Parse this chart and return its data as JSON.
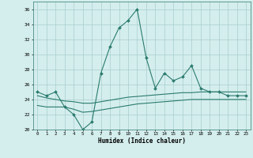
{
  "x": [
    0,
    1,
    2,
    3,
    4,
    5,
    6,
    7,
    8,
    9,
    10,
    11,
    12,
    13,
    14,
    15,
    16,
    17,
    18,
    19,
    20,
    21,
    22,
    23
  ],
  "y_main": [
    25,
    24.5,
    25,
    23,
    22,
    20,
    21,
    27.5,
    31,
    33.5,
    34.5,
    36,
    29.5,
    25.5,
    27.5,
    26.5,
    27,
    28.5,
    25.5,
    25,
    25,
    24.5,
    24.5,
    24.5
  ],
  "y_upper": [
    24.5,
    24.2,
    24.0,
    23.8,
    23.7,
    23.5,
    23.5,
    23.7,
    23.9,
    24.1,
    24.3,
    24.4,
    24.5,
    24.6,
    24.7,
    24.8,
    24.9,
    24.9,
    25.0,
    25.0,
    25.0,
    25.0,
    25.0,
    25.0
  ],
  "y_lower": [
    23.2,
    23.0,
    23.0,
    23.0,
    22.7,
    22.3,
    22.4,
    22.6,
    22.8,
    23.0,
    23.2,
    23.4,
    23.5,
    23.6,
    23.7,
    23.8,
    23.9,
    24.0,
    24.0,
    24.0,
    24.0,
    24.0,
    24.0,
    24.0
  ],
  "line_color": "#2a7b6e",
  "background_color": "#d4eeed",
  "grid_color": "#a8cece",
  "xlabel": "Humidex (Indice chaleur)",
  "ylim": [
    20,
    37
  ],
  "xlim": [
    -0.5,
    23.5
  ],
  "yticks": [
    20,
    22,
    24,
    26,
    28,
    30,
    32,
    34,
    36
  ],
  "xticks": [
    0,
    1,
    2,
    3,
    4,
    5,
    6,
    7,
    8,
    9,
    10,
    11,
    12,
    13,
    14,
    15,
    16,
    17,
    18,
    19,
    20,
    21,
    22,
    23
  ]
}
